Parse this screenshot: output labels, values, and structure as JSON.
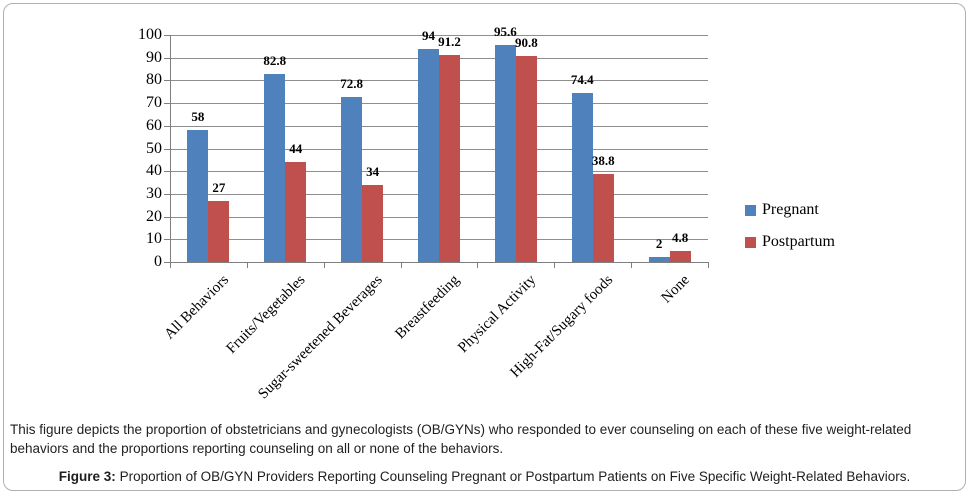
{
  "figure": {
    "description": "This figure depicts the proportion of obstetricians and gynecologists (OB/GYNs) who responded to ever counseling on each of these five weight-related behaviors and the proportions reporting counseling on all or none of the behaviors.",
    "caption_label": "Figure 3:",
    "caption_text": " Proportion of OB/GYN Providers Reporting Counseling Pregnant or Postpartum Patients on Five Specific Weight-Related Behaviors."
  },
  "chart_data": {
    "type": "bar",
    "title": "",
    "xlabel": "",
    "ylabel": "",
    "categories": [
      "All Behaviors",
      "Fruits/Vegetables",
      "Sugar-sweetened Beverages",
      "Breastfeeding",
      "Physical Activity",
      "High-Fat/Sugary foods",
      "None"
    ],
    "series": [
      {
        "name": "Pregnant",
        "color": "#4F81BD",
        "values": [
          58,
          82.8,
          72.8,
          94,
          95.6,
          74.4,
          2
        ]
      },
      {
        "name": "Postpartum",
        "color": "#C0504D",
        "values": [
          27,
          44,
          34,
          91.2,
          90.8,
          38.8,
          4.8
        ]
      }
    ],
    "ylim": [
      0,
      100
    ],
    "ytick_step": 10,
    "yticks": [
      0,
      10,
      20,
      30,
      40,
      50,
      60,
      70,
      80,
      90,
      100
    ],
    "grid": "horizontal",
    "gridline_color": "#8e8e8e",
    "legend_position": "right",
    "value_labels": true,
    "category_label_rotation_deg": 45
  }
}
